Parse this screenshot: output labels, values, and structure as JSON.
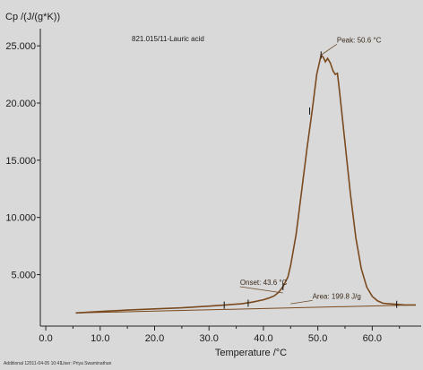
{
  "chart_data": {
    "type": "line",
    "title": "821.015/11-Lauric acid",
    "xlabel": "Temperature /°C",
    "ylabel": "Cp /(J/(g*K))",
    "xlim": [
      -1,
      69
    ],
    "ylim": [
      0.5,
      26.5
    ],
    "x_ticks": [
      0,
      10,
      20,
      30,
      40,
      50,
      60
    ],
    "x_tick_labels": [
      "0.0",
      "10.0",
      "20.0",
      "30.0",
      "40.0",
      "50.0",
      "60.0"
    ],
    "y_ticks": [
      5,
      10,
      15,
      20,
      25
    ],
    "y_tick_labels": [
      "5.000",
      "10.000",
      "15.000",
      "20.000",
      "25.000"
    ],
    "grid": false,
    "series": [
      {
        "color": "#7a4a1e",
        "x": [
          5.5,
          10,
          15,
          20,
          25,
          30,
          33,
          36,
          38,
          40,
          41,
          42,
          42.8,
          43.6,
          44.5,
          45,
          46,
          47,
          48,
          49,
          49.8,
          50.6,
          51.0,
          51.4,
          51.8,
          52.3,
          52.8,
          53.2,
          53.6,
          54,
          55,
          56,
          57,
          58,
          59,
          60,
          61,
          62,
          63,
          64.5,
          66,
          68
        ],
        "y": [
          1.65,
          1.78,
          1.9,
          2.0,
          2.1,
          2.25,
          2.35,
          2.45,
          2.6,
          2.8,
          2.95,
          3.15,
          3.45,
          3.95,
          4.8,
          5.8,
          8.5,
          12.2,
          16.0,
          19.5,
          22.5,
          24.2,
          24.0,
          23.6,
          23.9,
          23.5,
          22.8,
          22.5,
          22.6,
          21.0,
          16.5,
          12.0,
          8.2,
          5.5,
          3.9,
          3.1,
          2.7,
          2.5,
          2.45,
          2.4,
          2.35,
          2.35
        ]
      }
    ],
    "baseline": {
      "color": "#7a4a1e",
      "x": [
        5.5,
        68
      ],
      "y": [
        1.65,
        2.35
      ]
    },
    "markers": [
      {
        "x": 32.8,
        "y": 2.33
      },
      {
        "x": 37.2,
        "y": 2.5
      },
      {
        "x": 43.6,
        "y": 3.95
      },
      {
        "x": 48.5,
        "y": 19.3
      },
      {
        "x": 50.6,
        "y": 24.2
      },
      {
        "x": 64.5,
        "y": 2.4
      }
    ],
    "annotations": [
      {
        "text": "Peak: 50.6 °C",
        "x": 53.5,
        "y": 25.3,
        "target_x": 50.6,
        "target_y": 24.2
      },
      {
        "text": "Onset: 43.6 °C",
        "x": 35.7,
        "y": 4.1,
        "target_x": 43.6,
        "target_y": 3.4
      },
      {
        "text": "Area: 199.8 J/g",
        "x": 49.0,
        "y": 2.9,
        "target_x": 45.0,
        "target_y": 2.45
      }
    ],
    "footer": {
      "label": "Additional 1",
      "timestamp": "2011-04-05 10:41",
      "user": "User: Priya Swaminathan"
    }
  }
}
